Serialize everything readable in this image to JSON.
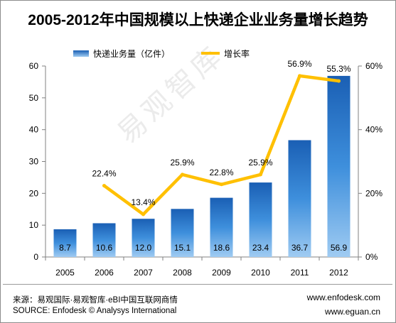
{
  "title": "2005-2012年中国规模以上快递企业业务量增长趋势",
  "watermark": "易观智库",
  "chart_data": {
    "type": "bar+line",
    "categories": [
      "2005",
      "2006",
      "2007",
      "2008",
      "2009",
      "2010",
      "2011",
      "2012"
    ],
    "series": [
      {
        "name": "快递业务量（亿件）",
        "type": "bar",
        "axis": "left",
        "color": "#1f6fc5",
        "values": [
          8.7,
          10.6,
          12.0,
          15.1,
          18.6,
          23.4,
          36.7,
          56.9
        ],
        "labels": [
          "8.7",
          "10.6",
          "12.0",
          "15.1",
          "18.6",
          "23.4",
          "36.7",
          "56.9"
        ]
      },
      {
        "name": "增长率",
        "type": "line",
        "axis": "right",
        "color": "#ffc000",
        "values": [
          null,
          22.4,
          13.4,
          25.9,
          22.8,
          25.9,
          56.9,
          55.3
        ],
        "labels": [
          "",
          "22.4%",
          "13.4%",
          "25.9%",
          "22.8%",
          "25.9%",
          "56.9%",
          "55.3%"
        ]
      }
    ],
    "y_left": {
      "min": 0,
      "max": 60,
      "ticks": [
        "0",
        "10",
        "20",
        "30",
        "40",
        "50",
        "60"
      ]
    },
    "y_right": {
      "min": 0,
      "max": 60,
      "ticks": [
        "0%",
        "20%",
        "40%",
        "60%"
      ]
    },
    "legend_position": "top"
  },
  "footer": {
    "source_cn": "来源：易观国际·易观智库·eBI中国互联网商情",
    "source_en": "SOURCE: Enfodesk © Analysys International",
    "site1": "www.enfodesk.com",
    "site2": "www.eguan.cn"
  }
}
